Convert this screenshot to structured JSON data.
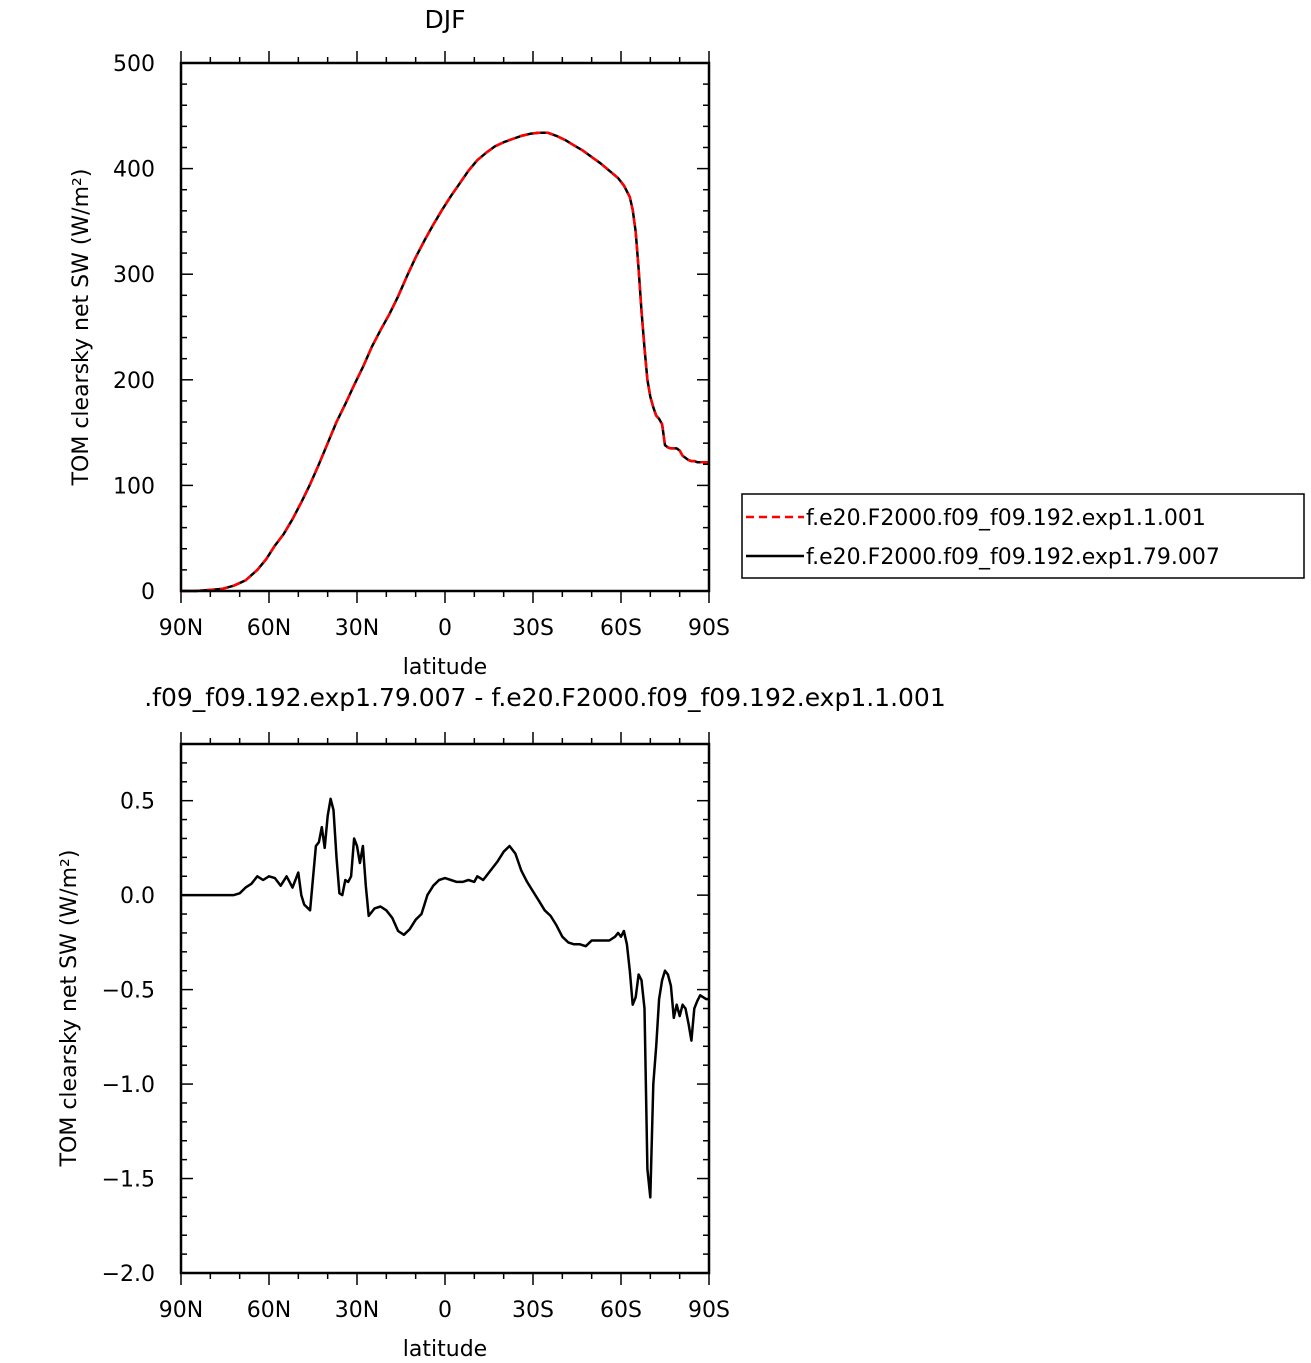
{
  "chart_data": [
    {
      "type": "line",
      "title": "DJF",
      "xlabel": "latitude",
      "ylabel": "TOM clearsky net SW (W/m²)",
      "x_tick_labels": [
        "90N",
        "60N",
        "30N",
        "0",
        "30S",
        "60S",
        "90S"
      ],
      "x_tick_values": [
        -90,
        -60,
        -30,
        0,
        30,
        60,
        90
      ],
      "xlim": [
        -90,
        90
      ],
      "ylim": [
        0,
        500
      ],
      "y_ticks": [
        0,
        100,
        200,
        300,
        400,
        500
      ],
      "y_tick_labels": [
        "0",
        "100",
        "200",
        "300",
        "400",
        "500"
      ],
      "grid": false,
      "legend_position": "right",
      "series": [
        {
          "name": "f.e20.F2000.f09_f09.192.exp1.1.001",
          "color": "#ff0000",
          "dash": "dashed",
          "x": [
            -90,
            -85,
            -80,
            -76,
            -72,
            -68,
            -64,
            -61,
            -58,
            -55,
            -52,
            -49,
            -46,
            -43,
            -40,
            -37,
            -34,
            -31,
            -28,
            -25,
            -22,
            -19,
            -16,
            -13,
            -10,
            -7,
            -4,
            -1,
            2,
            5,
            8,
            11,
            14,
            17,
            20,
            23,
            26,
            29,
            32,
            35,
            38,
            41,
            44,
            47,
            50,
            53,
            56,
            59,
            61,
            63,
            64,
            65,
            66,
            67,
            68,
            69,
            70,
            71,
            72,
            73,
            74,
            75,
            76,
            77,
            78,
            79,
            80,
            81,
            82,
            83,
            84,
            85,
            86,
            87,
            88,
            89,
            90
          ],
          "values": [
            0,
            0,
            1,
            2,
            5,
            10,
            20,
            30,
            43,
            54,
            68,
            84,
            101,
            120,
            140,
            160,
            177,
            195,
            212,
            231,
            247,
            262,
            279,
            298,
            316,
            332,
            347,
            361,
            374,
            386,
            398,
            408,
            415,
            421,
            425,
            428,
            431,
            433,
            434,
            434,
            431,
            427,
            422,
            417,
            411,
            405,
            398,
            391,
            384,
            373,
            361,
            340,
            305,
            265,
            230,
            200,
            184,
            174,
            166,
            163,
            158,
            138,
            136,
            135,
            135,
            135,
            133,
            128,
            126,
            124,
            123,
            123,
            122,
            122,
            122,
            122,
            122
          ]
        },
        {
          "name": "f.e20.F2000.f09_f09.192.exp1.79.007",
          "color": "#000000",
          "dash": "solid",
          "x": [
            -90,
            -85,
            -80,
            -76,
            -72,
            -68,
            -64,
            -61,
            -58,
            -55,
            -52,
            -49,
            -46,
            -43,
            -40,
            -37,
            -34,
            -31,
            -28,
            -25,
            -22,
            -19,
            -16,
            -13,
            -10,
            -7,
            -4,
            -1,
            2,
            5,
            8,
            11,
            14,
            17,
            20,
            23,
            26,
            29,
            32,
            35,
            38,
            41,
            44,
            47,
            50,
            53,
            56,
            59,
            61,
            63,
            64,
            65,
            66,
            67,
            68,
            69,
            70,
            71,
            72,
            73,
            74,
            75,
            76,
            77,
            78,
            79,
            80,
            81,
            82,
            83,
            84,
            85,
            86,
            87,
            88,
            89,
            90
          ],
          "values": [
            0,
            0,
            1,
            2,
            5,
            10,
            20,
            30,
            43,
            54,
            68,
            84,
            101,
            120,
            140,
            160,
            177,
            195,
            212,
            231,
            247,
            262,
            279,
            298,
            316,
            332,
            347,
            361,
            374,
            386,
            398,
            408,
            415,
            421,
            425,
            428,
            431,
            433,
            434,
            434,
            431,
            427,
            422,
            417,
            411,
            405,
            398,
            391,
            384,
            373,
            361,
            340,
            305,
            265,
            230,
            200,
            184,
            174,
            166,
            163,
            158,
            138,
            136,
            135,
            135,
            135,
            133,
            128,
            126,
            124,
            123,
            123,
            122,
            122,
            122,
            122,
            122
          ]
        }
      ]
    },
    {
      "type": "line",
      "title": ".f09_f09.192.exp1.79.007 - f.e20.F2000.f09_f09.192.exp1.1.001",
      "xlabel": "latitude",
      "ylabel": "TOM clearsky net SW (W/m²)",
      "x_tick_labels": [
        "90N",
        "60N",
        "30N",
        "0",
        "30S",
        "60S",
        "90S"
      ],
      "x_tick_values": [
        -90,
        -60,
        -30,
        0,
        30,
        60,
        90
      ],
      "xlim": [
        -90,
        90
      ],
      "ylim": [
        -2.0,
        0.8
      ],
      "y_ticks": [
        -2.0,
        -1.5,
        -1.0,
        -0.5,
        0.0,
        0.5
      ],
      "y_tick_labels": [
        "−2.0",
        "−1.5",
        "−1.0",
        "−0.5",
        "0.0",
        "0.5"
      ],
      "grid": false,
      "series": [
        {
          "color": "#000000",
          "dash": "solid",
          "x": [
            -90,
            -85,
            -80,
            -75,
            -72,
            -70,
            -68,
            -66,
            -64,
            -62,
            -60,
            -58,
            -56,
            -54,
            -52,
            -50,
            -49,
            -48,
            -46,
            -44,
            -43,
            -42,
            -41,
            -40,
            -39,
            -38,
            -37,
            -36,
            -35,
            -34,
            -33,
            -32,
            -31,
            -30,
            -29,
            -28,
            -27,
            -26,
            -24,
            -22,
            -20,
            -18,
            -16,
            -14,
            -12,
            -10,
            -8,
            -6,
            -4,
            -2,
            0,
            2,
            4,
            6,
            8,
            10,
            11,
            12,
            13,
            14,
            16,
            18,
            20,
            22,
            24,
            26,
            28,
            30,
            32,
            34,
            36,
            38,
            40,
            42,
            44,
            46,
            48,
            50,
            52,
            54,
            56,
            58,
            59,
            60,
            61,
            62,
            63,
            64,
            65,
            66,
            67,
            68,
            69,
            70,
            71,
            72,
            73,
            74,
            75,
            76,
            77,
            78,
            79,
            80,
            81,
            82,
            83,
            84,
            85,
            86,
            87,
            88,
            89,
            90
          ],
          "values": [
            0.0,
            0.0,
            0.0,
            0.0,
            0.0,
            0.01,
            0.04,
            0.06,
            0.1,
            0.08,
            0.1,
            0.09,
            0.05,
            0.1,
            0.04,
            0.12,
            0.0,
            -0.05,
            -0.08,
            0.26,
            0.28,
            0.36,
            0.25,
            0.42,
            0.51,
            0.45,
            0.2,
            0.01,
            0.0,
            0.08,
            0.07,
            0.1,
            0.3,
            0.26,
            0.17,
            0.26,
            0.05,
            -0.11,
            -0.07,
            -0.06,
            -0.08,
            -0.12,
            -0.19,
            -0.21,
            -0.18,
            -0.13,
            -0.1,
            0.0,
            0.05,
            0.08,
            0.09,
            0.08,
            0.07,
            0.07,
            0.08,
            0.07,
            0.1,
            0.09,
            0.08,
            0.1,
            0.14,
            0.18,
            0.23,
            0.26,
            0.22,
            0.13,
            0.07,
            0.02,
            -0.03,
            -0.08,
            -0.11,
            -0.16,
            -0.22,
            -0.25,
            -0.26,
            -0.26,
            -0.27,
            -0.24,
            -0.24,
            -0.24,
            -0.24,
            -0.22,
            -0.2,
            -0.22,
            -0.19,
            -0.26,
            -0.4,
            -0.58,
            -0.54,
            -0.42,
            -0.45,
            -0.6,
            -1.45,
            -1.6,
            -1.0,
            -0.8,
            -0.55,
            -0.45,
            -0.4,
            -0.42,
            -0.48,
            -0.65,
            -0.58,
            -0.64,
            -0.58,
            -0.6,
            -0.68,
            -0.77,
            -0.6,
            -0.56,
            -0.53,
            -0.54,
            -0.55,
            -0.55
          ]
        }
      ]
    }
  ]
}
